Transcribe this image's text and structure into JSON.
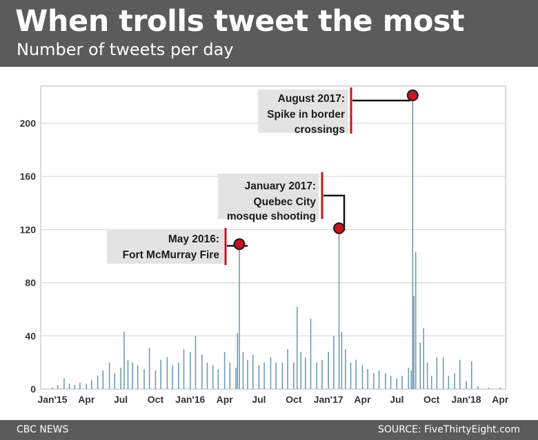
{
  "header": {
    "title": "When trolls tweet the most",
    "subtitle": "Number of tweets per day"
  },
  "footer": {
    "source_left": "CBC NEWS",
    "source_right": "SOURCE: FiveThirtyEight.com"
  },
  "colors": {
    "header_bg": "#5b5b5b",
    "bar": "#6f9ab3",
    "marker": "#c4161c",
    "callout_bg": "#e3e3e3",
    "callout_bar": "#c4161c"
  },
  "chart_data": {
    "type": "bar",
    "title": "When trolls tweet the most",
    "subtitle": "Number of tweets per day",
    "xlabel": "",
    "ylabel": "",
    "ylim": [
      0,
      228
    ],
    "xlim": [
      "2014-12-01",
      "2018-04-15"
    ],
    "y_ticks": [
      0,
      40,
      80,
      120,
      160,
      200
    ],
    "x_ticks": [
      {
        "label": "Jan'15",
        "date": "2015-01-01"
      },
      {
        "label": "Apr",
        "date": "2015-04-01"
      },
      {
        "label": "Jul",
        "date": "2015-07-01"
      },
      {
        "label": "Oct",
        "date": "2015-10-01"
      },
      {
        "label": "Jan'16",
        "date": "2016-01-01"
      },
      {
        "label": "Apr",
        "date": "2016-04-01"
      },
      {
        "label": "Jul",
        "date": "2016-07-01"
      },
      {
        "label": "Oct",
        "date": "2016-10-01"
      },
      {
        "label": "Jan'17",
        "date": "2017-01-01"
      },
      {
        "label": "Apr",
        "date": "2017-04-01"
      },
      {
        "label": "Jul",
        "date": "2017-07-01"
      },
      {
        "label": "Oct",
        "date": "2017-10-01"
      },
      {
        "label": "Jan'18",
        "date": "2018-01-01"
      },
      {
        "label": "Apr",
        "date": "2018-04-01"
      }
    ],
    "grid": true,
    "series": [
      {
        "x": [
          "2015-01-01",
          "2015-01-15",
          "2015-02-01",
          "2015-02-15",
          "2015-03-01",
          "2015-03-15",
          "2015-04-01",
          "2015-04-15",
          "2015-05-01",
          "2015-05-15",
          "2015-06-01",
          "2015-06-15",
          "2015-07-01",
          "2015-07-10",
          "2015-07-20",
          "2015-08-01",
          "2015-08-15",
          "2015-09-01",
          "2015-09-15",
          "2015-10-01",
          "2015-10-15",
          "2015-11-01",
          "2015-11-15",
          "2015-12-01",
          "2015-12-15",
          "2016-01-01",
          "2016-01-15",
          "2016-02-01",
          "2016-02-15",
          "2016-03-01",
          "2016-03-15",
          "2016-04-01",
          "2016-04-15",
          "2016-05-01",
          "2016-05-05",
          "2016-05-10",
          "2016-05-20",
          "2016-06-01",
          "2016-06-15",
          "2016-07-01",
          "2016-07-15",
          "2016-08-01",
          "2016-08-15",
          "2016-09-01",
          "2016-09-15",
          "2016-10-01",
          "2016-10-10",
          "2016-10-20",
          "2016-11-01",
          "2016-11-15",
          "2016-12-01",
          "2016-12-15",
          "2017-01-01",
          "2017-01-15",
          "2017-01-29",
          "2017-02-05",
          "2017-02-15",
          "2017-03-01",
          "2017-03-15",
          "2017-04-01",
          "2017-04-15",
          "2017-05-01",
          "2017-05-15",
          "2017-06-01",
          "2017-06-15",
          "2017-07-01",
          "2017-07-15",
          "2017-08-01",
          "2017-08-08",
          "2017-08-12",
          "2017-08-15",
          "2017-08-20",
          "2017-09-01",
          "2017-09-10",
          "2017-09-20",
          "2017-10-01",
          "2017-10-15",
          "2017-11-01",
          "2017-11-15",
          "2017-12-01",
          "2017-12-15",
          "2018-01-01",
          "2018-01-15",
          "2018-02-01",
          "2018-03-01",
          "2018-04-01"
        ],
        "values": [
          1,
          3,
          8,
          4,
          3,
          5,
          4,
          7,
          10,
          14,
          20,
          12,
          16,
          43,
          22,
          20,
          18,
          15,
          31,
          14,
          22,
          24,
          18,
          20,
          30,
          28,
          40,
          26,
          20,
          18,
          15,
          28,
          20,
          16,
          42,
          109,
          28,
          22,
          26,
          18,
          20,
          24,
          20,
          20,
          30,
          20,
          62,
          28,
          24,
          53,
          20,
          22,
          28,
          40,
          121,
          43,
          30,
          20,
          22,
          18,
          15,
          12,
          14,
          12,
          10,
          8,
          10,
          16,
          14,
          221,
          70,
          103,
          35,
          46,
          20,
          10,
          24,
          24,
          10,
          12,
          22,
          6,
          21,
          2,
          1,
          1
        ]
      }
    ],
    "annotations": [
      {
        "label": "May 2016:\nFort McMurray Fire",
        "date": "2016-05-10",
        "value": 109
      },
      {
        "label": "January 2017:\nQuebec City\nmosque shooting",
        "date": "2017-01-29",
        "value": 121
      },
      {
        "label": "August 2017:\nSpike in border\ncrossings",
        "date": "2017-08-12",
        "value": 221
      }
    ]
  }
}
